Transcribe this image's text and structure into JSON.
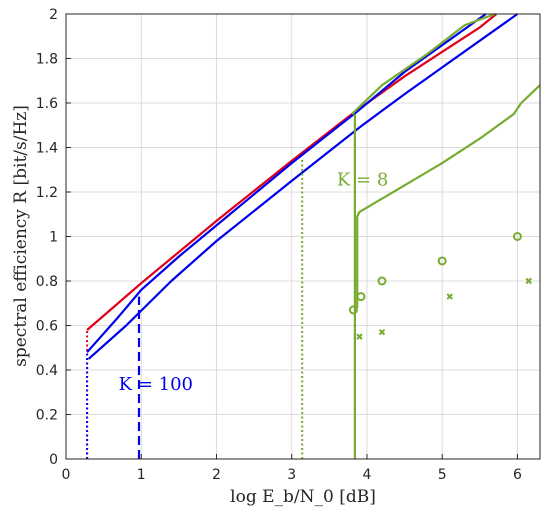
{
  "chart_data": {
    "type": "line",
    "xlabel": "log E_b/N_0 [dB]",
    "ylabel": "spectral efficiency R [bit/s/Hz]",
    "xlim": [
      0,
      6.3
    ],
    "ylim": [
      0,
      2
    ],
    "x_ticks": [
      "0",
      "1",
      "2",
      "3",
      "4",
      "5",
      "6"
    ],
    "y_ticks": [
      "0",
      "0.2",
      "0.4",
      "0.6",
      "0.8",
      "1",
      "1.2",
      "1.4",
      "1.6",
      "1.8",
      "2"
    ],
    "grid": true,
    "annotations": [
      {
        "label": "K = 100",
        "x": 0.7,
        "y": 0.31,
        "color": "#0000ee"
      },
      {
        "label": "K = 8",
        "x": 3.6,
        "y": 1.23,
        "color": "#77ac30"
      }
    ],
    "colors": {
      "red": "#e0001a",
      "blue": "#0000ee",
      "green": "#77ac30"
    },
    "series": [
      {
        "color": "red",
        "style": "solid",
        "x": [
          0.28,
          1.0,
          2.0,
          3.0,
          3.8,
          4.5,
          5.0,
          5.5,
          5.72
        ],
        "y": [
          0.58,
          0.79,
          1.07,
          1.34,
          1.55,
          1.72,
          1.83,
          1.94,
          2.0
        ]
      },
      {
        "color": "red",
        "style": "dotted",
        "x": [
          0.28,
          0.28
        ],
        "y": [
          0.0,
          0.58
        ]
      },
      {
        "color": "blue",
        "style": "solid",
        "x": [
          0.28,
          0.7,
          1.0,
          1.5,
          2.0,
          3.0,
          3.9,
          4.5,
          5.0,
          5.58
        ],
        "y": [
          0.48,
          0.64,
          0.76,
          0.91,
          1.05,
          1.33,
          1.57,
          1.74,
          1.86,
          2.0
        ]
      },
      {
        "color": "blue",
        "style": "dotted",
        "x": [
          0.28,
          0.28
        ],
        "y": [
          0.0,
          0.48
        ]
      },
      {
        "color": "blue",
        "style": "solid",
        "x": [
          0.3,
          0.8,
          1.4,
          2.0,
          3.0,
          3.9,
          4.5,
          5.0,
          5.5,
          6.0
        ],
        "y": [
          0.45,
          0.6,
          0.8,
          0.98,
          1.25,
          1.49,
          1.64,
          1.76,
          1.88,
          2.0
        ]
      },
      {
        "color": "blue",
        "style": "dashed",
        "x": [
          0.97,
          0.97
        ],
        "y": [
          0.0,
          0.73
        ]
      },
      {
        "color": "green",
        "style": "solid",
        "x": [
          3.8,
          4.2,
          4.8,
          5.3,
          5.7
        ],
        "y": [
          1.55,
          1.68,
          1.82,
          1.95,
          2.0
        ]
      },
      {
        "color": "green",
        "style": "solid",
        "x": [
          3.84,
          3.84
        ],
        "y": [
          0.0,
          1.55
        ]
      },
      {
        "color": "green",
        "style": "dotted",
        "x": [
          3.14,
          3.14
        ],
        "y": [
          0.0,
          1.35
        ]
      },
      {
        "color": "green",
        "style": "solid",
        "x": [
          3.87,
          3.87,
          3.9,
          4.5,
          5.0,
          5.5,
          5.95,
          6.05,
          6.3
        ],
        "y": [
          0.68,
          1.09,
          1.11,
          1.23,
          1.33,
          1.44,
          1.55,
          1.6,
          1.68
        ]
      },
      {
        "color": "green",
        "style": "circle-markers",
        "x": [
          3.82,
          3.92,
          4.2,
          5.0,
          6.0
        ],
        "y": [
          0.67,
          0.73,
          0.8,
          0.89,
          1.0
        ]
      },
      {
        "color": "green",
        "style": "cross-markers",
        "x": [
          3.9,
          4.2,
          5.1,
          6.15
        ],
        "y": [
          0.55,
          0.57,
          0.73,
          0.8
        ]
      }
    ]
  }
}
